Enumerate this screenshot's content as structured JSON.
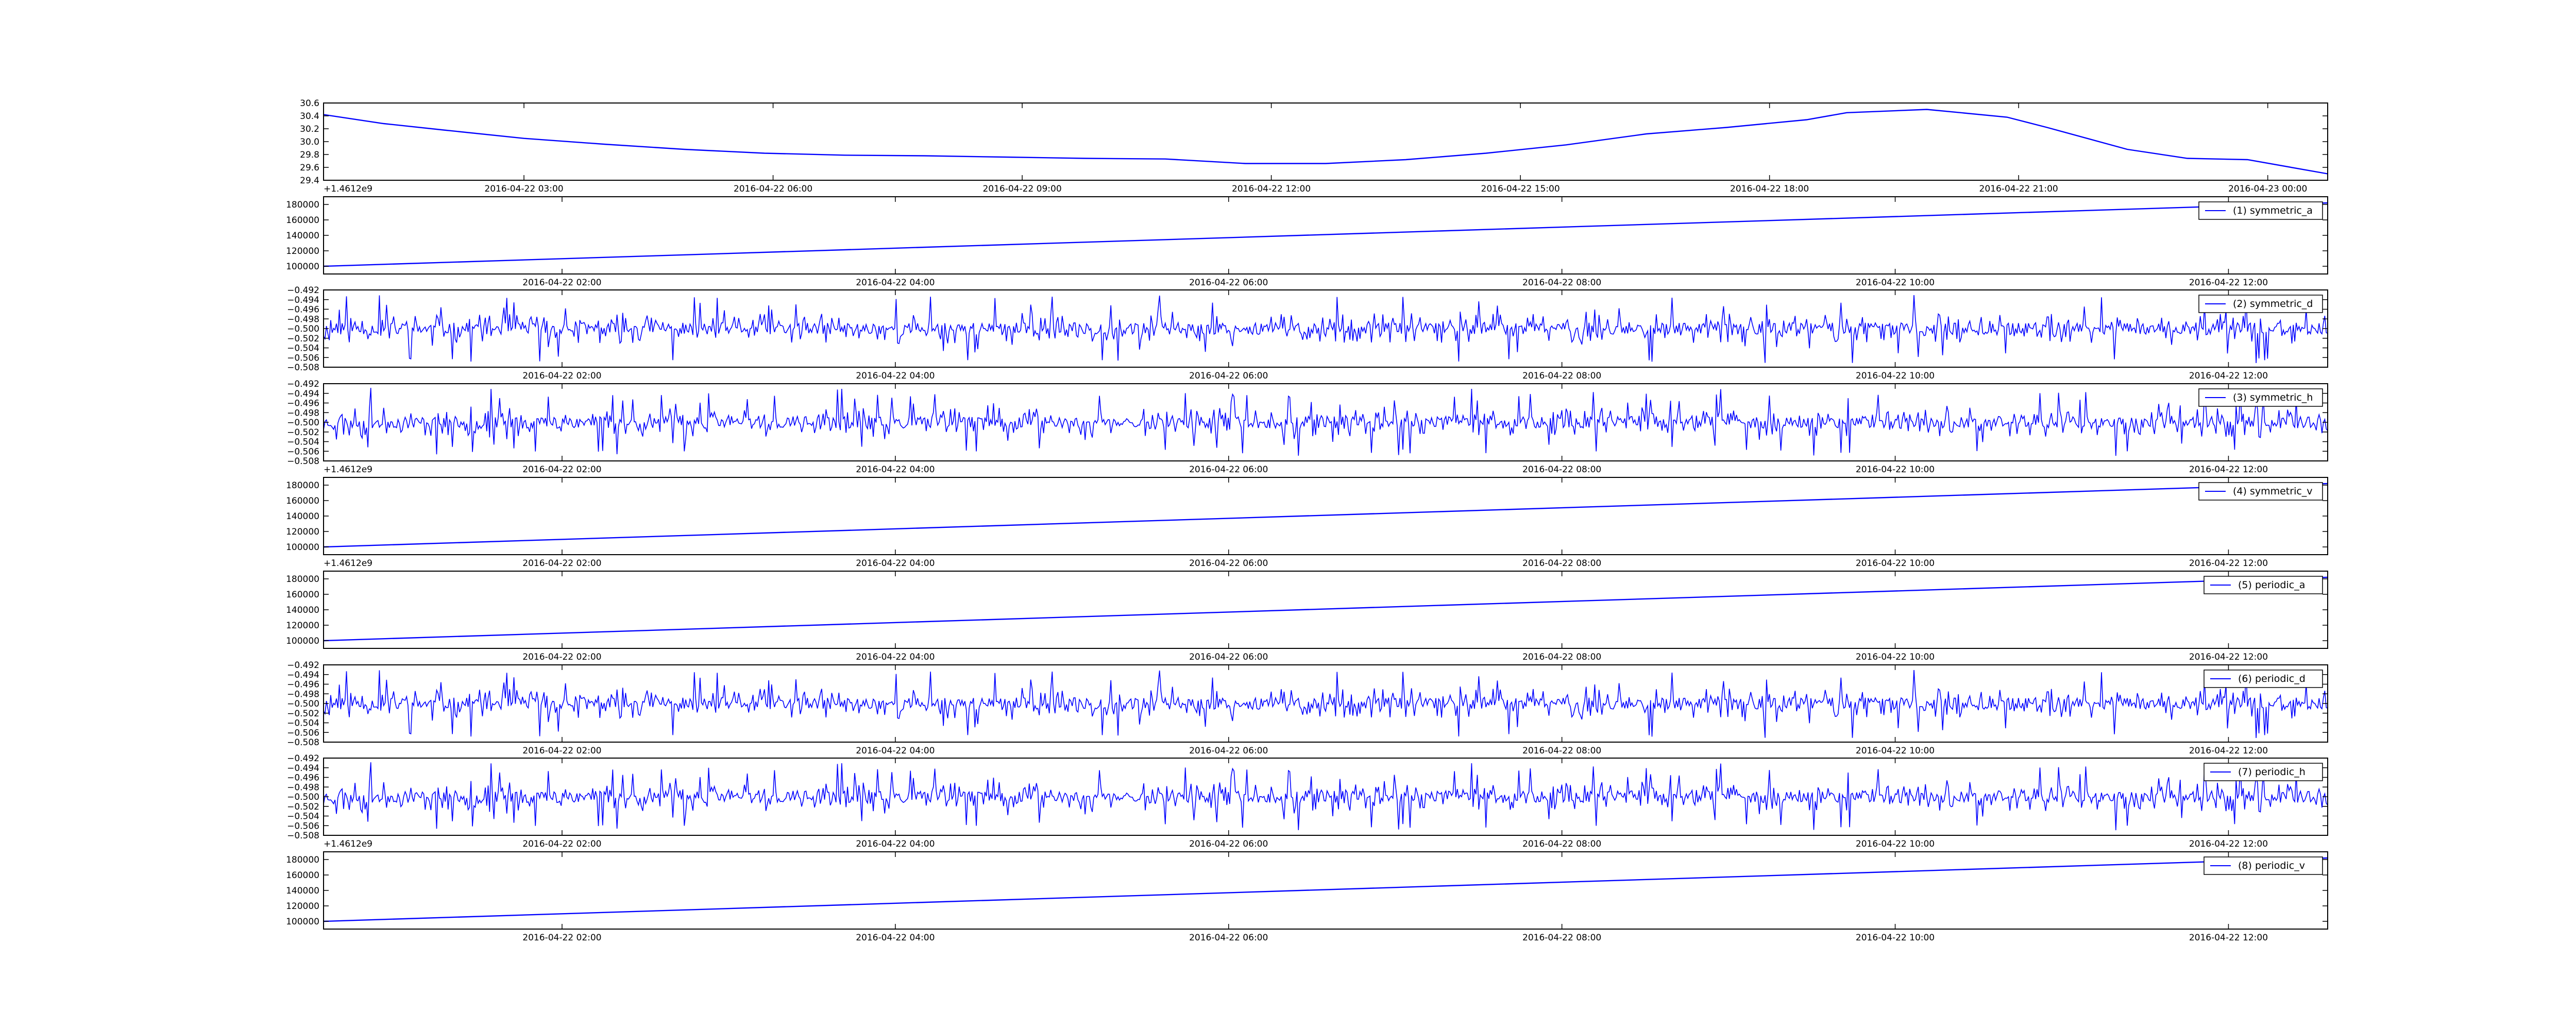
{
  "chart_data": [
    {
      "type": "line",
      "offset_label": "+1.4612e9",
      "y_ticks": [
        29.4,
        29.6,
        29.8,
        30.0,
        30.2,
        30.4,
        30.6
      ],
      "ylim": [
        29.4,
        30.6
      ],
      "x_tick_labels": [
        "2016-04-22 03:00",
        "2016-04-22 06:00",
        "2016-04-22 09:00",
        "2016-04-22 12:00",
        "2016-04-22 15:00",
        "2016-04-22 18:00",
        "2016-04-22 21:00",
        "2016-04-23 00:00"
      ],
      "series": [
        {
          "color": "#0000ff",
          "x": [
            0,
            0.03,
            0.06,
            0.1,
            0.14,
            0.18,
            0.22,
            0.26,
            0.3,
            0.34,
            0.38,
            0.42,
            0.46,
            0.5,
            0.54,
            0.58,
            0.62,
            0.66,
            0.7,
            0.74,
            0.76,
            0.8,
            0.84,
            0.86,
            0.9,
            0.93,
            0.96,
            1.0
          ],
          "y": [
            30.42,
            30.28,
            30.18,
            30.05,
            29.96,
            29.88,
            29.82,
            29.79,
            29.78,
            29.76,
            29.74,
            29.73,
            29.66,
            29.66,
            29.72,
            29.82,
            29.95,
            30.12,
            30.22,
            30.34,
            30.45,
            30.5,
            30.38,
            30.22,
            29.88,
            29.74,
            29.72,
            29.5
          ]
        }
      ],
      "legend": ""
    },
    {
      "type": "line",
      "offset_label": "",
      "y_ticks": [
        100000,
        120000,
        140000,
        160000,
        180000
      ],
      "ylim": [
        90000,
        190000
      ],
      "x_tick_labels": [
        "2016-04-22 02:00",
        "2016-04-22 04:00",
        "2016-04-22 06:00",
        "2016-04-22 08:00",
        "2016-04-22 10:00",
        "2016-04-22 12:00"
      ],
      "series": [
        {
          "color": "#0000ff",
          "x": [
            0,
            1
          ],
          "y": [
            100000,
            182000
          ]
        }
      ],
      "legend": "(1) symmetric_a",
      "legend_placement": "top-right"
    },
    {
      "type": "line",
      "offset_label": "",
      "y_ticks": [
        -0.508,
        -0.506,
        -0.504,
        -0.502,
        -0.5,
        -0.498,
        -0.496,
        -0.494,
        -0.492
      ],
      "ylim": [
        -0.508,
        -0.492
      ],
      "x_tick_labels": [
        "2016-04-22 02:00",
        "2016-04-22 04:00",
        "2016-04-22 06:00",
        "2016-04-22 08:00",
        "2016-04-22 10:00",
        "2016-04-22 12:00"
      ],
      "series": [
        {
          "color": "#0000ff",
          "noise_center": -0.5,
          "noise_amplitude": 0.0055,
          "noise_seed": 11
        }
      ],
      "legend": "(2) symmetric_d",
      "legend_placement": "top-right"
    },
    {
      "type": "line",
      "offset_label": "+1.4612e9",
      "y_ticks": [
        -0.508,
        -0.506,
        -0.504,
        -0.502,
        -0.5,
        -0.498,
        -0.496,
        -0.494,
        -0.492
      ],
      "ylim": [
        -0.508,
        -0.492
      ],
      "x_tick_labels": [
        "2016-04-22 02:00",
        "2016-04-22 04:00",
        "2016-04-22 06:00",
        "2016-04-22 08:00",
        "2016-04-22 10:00",
        "2016-04-22 12:00"
      ],
      "series": [
        {
          "color": "#0000ff",
          "noise_center": -0.5,
          "noise_amplitude": 0.0055,
          "noise_seed": 23
        }
      ],
      "legend": "(3) symmetric_h",
      "legend_placement": "top-right"
    },
    {
      "type": "line",
      "offset_label": "+1.4612e9",
      "y_ticks": [
        100000,
        120000,
        140000,
        160000,
        180000
      ],
      "ylim": [
        90000,
        190000
      ],
      "x_tick_labels": [
        "2016-04-22 02:00",
        "2016-04-22 04:00",
        "2016-04-22 06:00",
        "2016-04-22 08:00",
        "2016-04-22 10:00",
        "2016-04-22 12:00"
      ],
      "series": [
        {
          "color": "#0000ff",
          "x": [
            0,
            1
          ],
          "y": [
            100000,
            182000
          ]
        }
      ],
      "legend": "(4) symmetric_v",
      "legend_placement": "top-right"
    },
    {
      "type": "line",
      "offset_label": "",
      "y_ticks": [
        100000,
        120000,
        140000,
        160000,
        180000
      ],
      "ylim": [
        90000,
        190000
      ],
      "x_tick_labels": [
        "2016-04-22 02:00",
        "2016-04-22 04:00",
        "2016-04-22 06:00",
        "2016-04-22 08:00",
        "2016-04-22 10:00",
        "2016-04-22 12:00"
      ],
      "series": [
        {
          "color": "#0000ff",
          "x": [
            0,
            1
          ],
          "y": [
            100000,
            182000
          ]
        }
      ],
      "legend": "(5) periodic_a",
      "legend_placement": "top-right"
    },
    {
      "type": "line",
      "offset_label": "",
      "y_ticks": [
        -0.508,
        -0.506,
        -0.504,
        -0.502,
        -0.5,
        -0.498,
        -0.496,
        -0.494,
        -0.492
      ],
      "ylim": [
        -0.508,
        -0.492
      ],
      "x_tick_labels": [
        "2016-04-22 02:00",
        "2016-04-22 04:00",
        "2016-04-22 06:00",
        "2016-04-22 08:00",
        "2016-04-22 10:00",
        "2016-04-22 12:00"
      ],
      "series": [
        {
          "color": "#0000ff",
          "noise_center": -0.5,
          "noise_amplitude": 0.0055,
          "noise_seed": 11
        }
      ],
      "legend": "(6) periodic_d",
      "legend_placement": "top-right"
    },
    {
      "type": "line",
      "offset_label": "+1.4612e9",
      "y_ticks": [
        -0.508,
        -0.506,
        -0.504,
        -0.502,
        -0.5,
        -0.498,
        -0.496,
        -0.494,
        -0.492
      ],
      "ylim": [
        -0.508,
        -0.492
      ],
      "x_tick_labels": [
        "2016-04-22 02:00",
        "2016-04-22 04:00",
        "2016-04-22 06:00",
        "2016-04-22 08:00",
        "2016-04-22 10:00",
        "2016-04-22 12:00"
      ],
      "series": [
        {
          "color": "#0000ff",
          "noise_center": -0.5,
          "noise_amplitude": 0.0055,
          "noise_seed": 23
        }
      ],
      "legend": "(7) periodic_h",
      "legend_placement": "top-right"
    },
    {
      "type": "line",
      "offset_label": "",
      "y_ticks": [
        100000,
        120000,
        140000,
        160000,
        180000
      ],
      "ylim": [
        90000,
        190000
      ],
      "x_tick_labels": [
        "2016-04-22 02:00",
        "2016-04-22 04:00",
        "2016-04-22 06:00",
        "2016-04-22 08:00",
        "2016-04-22 10:00",
        "2016-04-22 12:00"
      ],
      "series": [
        {
          "color": "#0000ff",
          "x": [
            0,
            1
          ],
          "y": [
            100000,
            182000
          ]
        }
      ],
      "legend": "(8) periodic_v",
      "legend_placement": "top-right"
    }
  ]
}
